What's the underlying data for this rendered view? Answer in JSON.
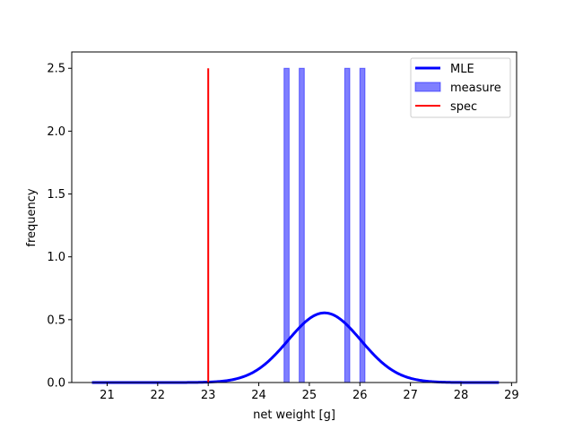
{
  "chart_data": {
    "type": "histogram",
    "xlabel": "net weight [g]",
    "ylabel": "frequency",
    "xlim": [
      20.3,
      29.1
    ],
    "ylim": [
      0,
      2.63
    ],
    "xticks": [
      21,
      22,
      23,
      24,
      25,
      26,
      27,
      28,
      29
    ],
    "yticks": [
      0.0,
      0.5,
      1.0,
      1.5,
      2.0,
      2.5
    ],
    "xtick_labels": [
      "21",
      "22",
      "23",
      "24",
      "25",
      "26",
      "27",
      "28",
      "29"
    ],
    "ytick_labels": [
      "0.0",
      "0.5",
      "1.0",
      "1.5",
      "2.0",
      "2.5"
    ],
    "grid": false,
    "legend_position": "top-right",
    "series": [
      {
        "name": "MLE",
        "kind": "line",
        "color": "#0000ff",
        "mean": 25.3,
        "std": 0.72,
        "x_range": [
          20.7,
          28.75
        ]
      },
      {
        "name": "measure",
        "kind": "bar",
        "color": "#0000ff",
        "alpha": 0.5,
        "bins": [
          {
            "x0": 24.5,
            "x1": 24.6,
            "value": 2.5
          },
          {
            "x0": 24.8,
            "x1": 24.9,
            "value": 2.5
          },
          {
            "x0": 25.7,
            "x1": 25.8,
            "value": 2.5
          },
          {
            "x0": 26.0,
            "x1": 26.1,
            "value": 2.5
          }
        ]
      },
      {
        "name": "spec",
        "kind": "vline",
        "color": "#ff0000",
        "x": 23.0,
        "y_range": [
          0,
          2.5
        ]
      }
    ]
  }
}
